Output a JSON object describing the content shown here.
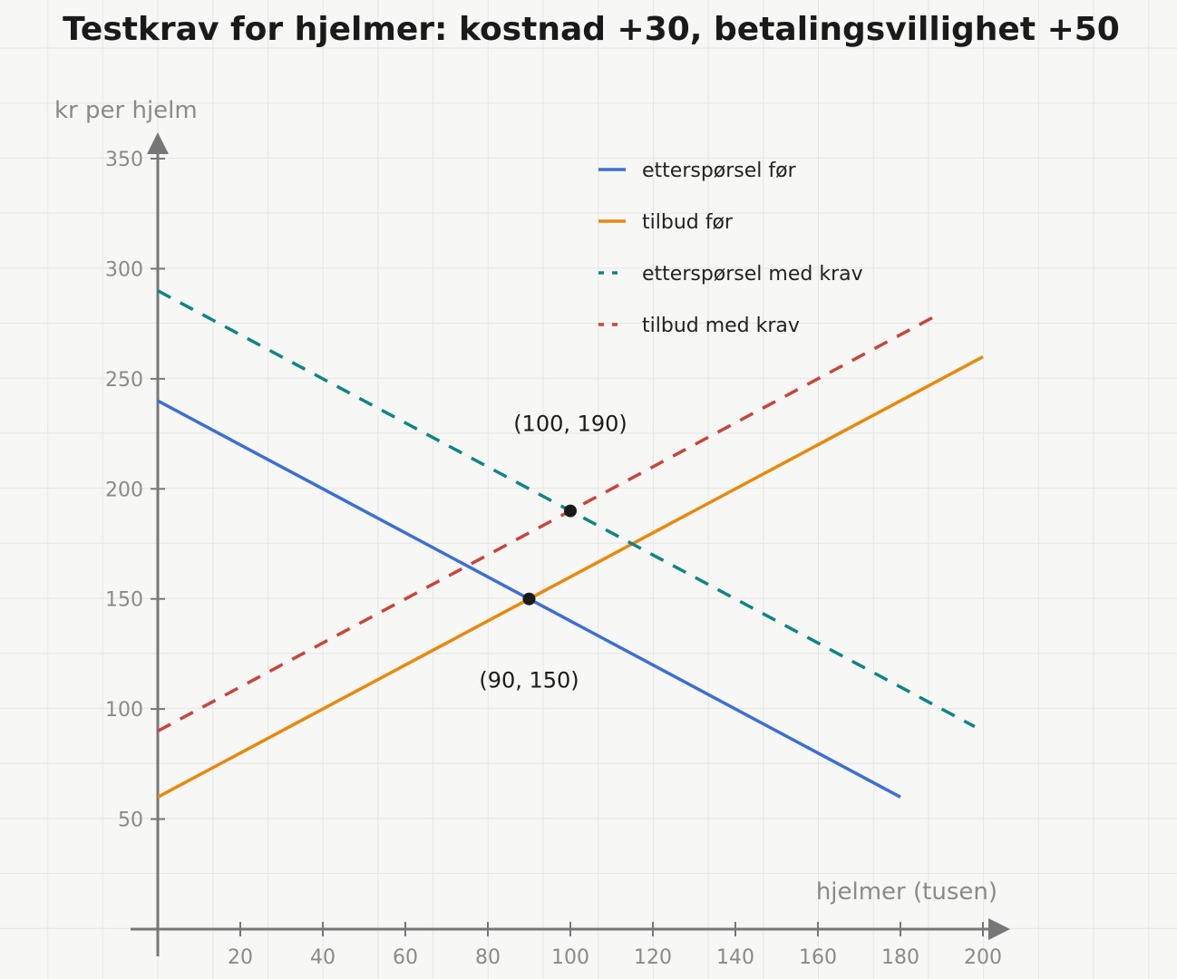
{
  "chart_data": {
    "type": "line",
    "title": "Testkrav for hjelmer: kostnad +30, betalingsvillighet +50",
    "xlabel": "hjelmer (tusen)",
    "ylabel": "kr per hjelm",
    "xlim": [
      0,
      200
    ],
    "ylim": [
      0,
      350
    ],
    "x_ticks": [
      20,
      40,
      60,
      80,
      100,
      120,
      140,
      160,
      180,
      200
    ],
    "y_ticks": [
      50,
      100,
      150,
      200,
      250,
      300,
      350
    ],
    "grid": true,
    "legend_position": "top-right",
    "series": [
      {
        "name": "etterspørsel før",
        "color": "#3b6fd4",
        "style": "solid",
        "x": [
          0,
          180
        ],
        "y": [
          240,
          60
        ]
      },
      {
        "name": "tilbud før",
        "color": "#e8890c",
        "style": "solid",
        "x": [
          0,
          200
        ],
        "y": [
          60,
          260
        ]
      },
      {
        "name": "etterspørsel med krav",
        "color": "#0f8585",
        "style": "dashed",
        "x": [
          0,
          198
        ],
        "y": [
          290,
          92
        ]
      },
      {
        "name": "tilbud med krav",
        "color": "#c9453b",
        "style": "dashed",
        "x": [
          0,
          190
        ],
        "y": [
          90,
          280
        ]
      }
    ],
    "points": [
      {
        "x": 90,
        "y": 150,
        "label": "(90, 150)"
      },
      {
        "x": 100,
        "y": 190,
        "label": "(100, 190)"
      }
    ]
  }
}
